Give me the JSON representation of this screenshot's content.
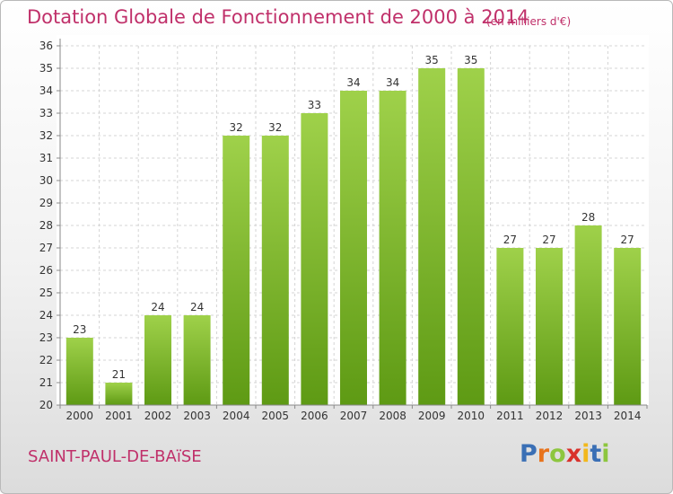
{
  "header": {
    "title": "Dotation Globale de Fonctionnement de 2000 à 2014",
    "subtitle": "(en milliers d'€)"
  },
  "footer": {
    "commune": "SAINT-PAUL-DE-BAïSE",
    "logo_letters": [
      {
        "char": "P",
        "color": "#3a6fb5"
      },
      {
        "char": "r",
        "color": "#e8731c"
      },
      {
        "char": "o",
        "color": "#8dc63f"
      },
      {
        "char": "x",
        "color": "#d9312b"
      },
      {
        "char": "i",
        "color": "#f2b81c"
      },
      {
        "char": "t",
        "color": "#3a6fb5"
      },
      {
        "char": "i",
        "color": "#8dc63f"
      }
    ]
  },
  "chart_data": {
    "type": "bar",
    "categories": [
      "2000",
      "2001",
      "2002",
      "2003",
      "2004",
      "2005",
      "2006",
      "2007",
      "2008",
      "2009",
      "2010",
      "2011",
      "2012",
      "2013",
      "2014"
    ],
    "values": [
      23,
      21,
      24,
      24,
      32,
      32,
      33,
      34,
      34,
      35,
      35,
      27,
      27,
      28,
      27
    ],
    "title": "Dotation Globale de Fonctionnement de 2000 à 2014",
    "subtitle": "(en milliers d'€)",
    "ylim": [
      20,
      36
    ],
    "ytick_step": 1,
    "grid": true,
    "data_labels": true,
    "bar_color_top": "#9fd14a",
    "bar_color_bottom": "#5e9a14"
  }
}
